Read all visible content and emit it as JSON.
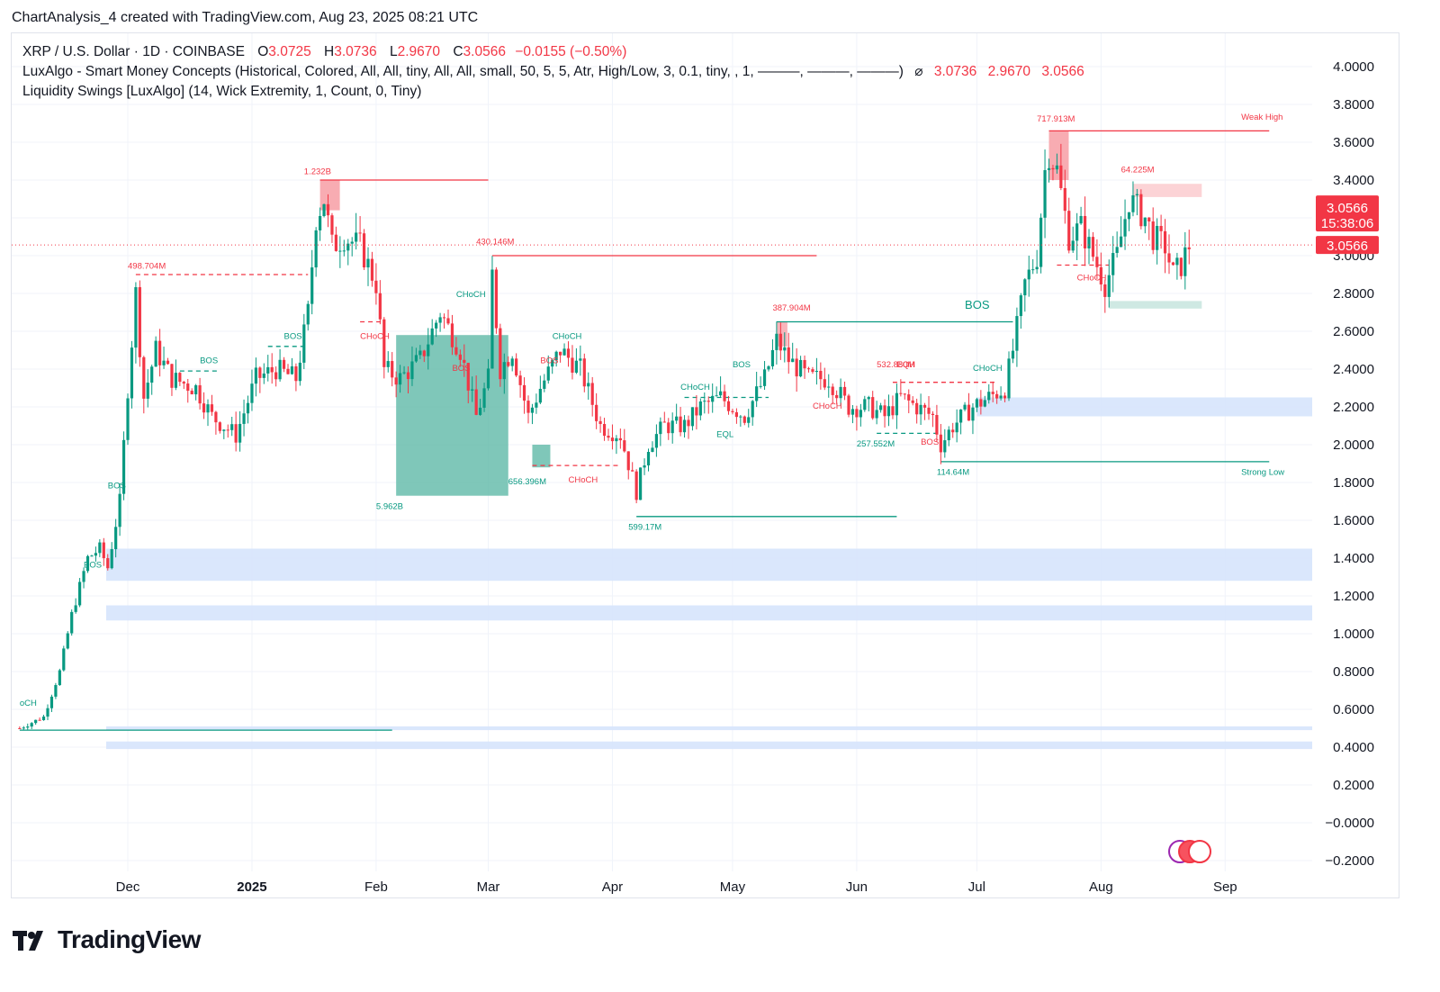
{
  "header": {
    "text": "ChartAnalysis_4 created with TradingView.com, Aug 23, 2025 08:21 UTC"
  },
  "legend": {
    "symbol": "XRP / U.S. Dollar · 1D · COINBASE",
    "o_label": "O",
    "o_value": "3.0725",
    "h_label": "H",
    "h_value": "3.0736",
    "l_label": "L",
    "l_value": "2.9670",
    "c_label": "C",
    "c_value": "3.0566",
    "change": "−0.0155 (−0.50%)",
    "indicator1": "LuxAlgo - Smart Money Concepts (Historical, Colored, All, All, tiny, All, All, small, 50, 5, 5, Atr, High/Low, 3, 0.1, tiny, , 1, ———, ———, ———)",
    "indicator1_values": [
      "3.0736",
      "2.9670",
      "3.0566"
    ],
    "indicator2": "Liquidity Swings [LuxAlgo] (14, Wick Extremity, 1, Count, 0, Tiny)"
  },
  "price_badge": {
    "price": "3.0566",
    "countdown": "15:38:06",
    "price2": "3.0566"
  },
  "brand": {
    "name": "TradingView"
  },
  "colors": {
    "up": "#089981",
    "down": "#f23645",
    "zone_blue": "#d6e4fc",
    "zone_teal": "#5fb9a7",
    "zone_red": "#f7a3aa"
  },
  "chart_data": {
    "type": "candlestick",
    "symbol": "XRP / U.S. Dollar",
    "interval": "1D",
    "y_axis": {
      "ylim": [
        -0.25,
        4.1
      ],
      "ticks": [
        "4.0000",
        "3.8000",
        "3.6000",
        "3.4000",
        "3.2000",
        "3.0000",
        "2.8000",
        "2.6000",
        "2.4000",
        "2.2000",
        "2.0000",
        "1.8000",
        "1.6000",
        "1.4000",
        "1.2000",
        "1.0000",
        "0.8000",
        "0.6000",
        "0.4000",
        "0.2000",
        "−0.0000",
        "−0.2000"
      ]
    },
    "x_axis": {
      "ticks": [
        "Dec",
        "2025",
        "Feb",
        "Mar",
        "Apr",
        "May",
        "Jun",
        "Jul",
        "Aug",
        "Sep"
      ]
    },
    "current_price": 3.0566,
    "price_path": [
      [
        "2024-11-04",
        0.5
      ],
      [
        "2024-11-10",
        0.56
      ],
      [
        "2024-11-14",
        0.8
      ],
      [
        "2024-11-17",
        1.1
      ],
      [
        "2024-11-21",
        1.4
      ],
      [
        "2024-11-24",
        1.45
      ],
      [
        "2024-11-26",
        1.35
      ],
      [
        "2024-11-29",
        1.7
      ],
      [
        "2024-12-01",
        2.3
      ],
      [
        "2024-12-03",
        2.8
      ],
      [
        "2024-12-05",
        2.25
      ],
      [
        "2024-12-08",
        2.5
      ],
      [
        "2024-12-12",
        2.35
      ],
      [
        "2024-12-18",
        2.3
      ],
      [
        "2024-12-22",
        2.15
      ],
      [
        "2024-12-28",
        2.05
      ],
      [
        "2025-01-02",
        2.35
      ],
      [
        "2025-01-07",
        2.4
      ],
      [
        "2025-01-12",
        2.35
      ],
      [
        "2025-01-15",
        2.7
      ],
      [
        "2025-01-17",
        3.2
      ],
      [
        "2025-01-19",
        3.3
      ],
      [
        "2025-01-21",
        3.05
      ],
      [
        "2025-01-24",
        3.1
      ],
      [
        "2025-01-28",
        3.05
      ],
      [
        "2025-02-01",
        2.85
      ],
      [
        "2025-02-03",
        2.4
      ],
      [
        "2025-02-07",
        2.35
      ],
      [
        "2025-02-12",
        2.45
      ],
      [
        "2025-02-17",
        2.7
      ],
      [
        "2025-02-22",
        2.5
      ],
      [
        "2025-02-26",
        2.15
      ],
      [
        "2025-03-01",
        2.35
      ],
      [
        "2025-03-02",
        2.9
      ],
      [
        "2025-03-04",
        2.4
      ],
      [
        "2025-03-07",
        2.5
      ],
      [
        "2025-03-11",
        2.15
      ],
      [
        "2025-03-14",
        2.3
      ],
      [
        "2025-03-19",
        2.5
      ],
      [
        "2025-03-24",
        2.4
      ],
      [
        "2025-03-29",
        2.1
      ],
      [
        "2025-04-03",
        2.05
      ],
      [
        "2025-04-07",
        1.75
      ],
      [
        "2025-04-10",
        2.0
      ],
      [
        "2025-04-14",
        2.1
      ],
      [
        "2025-04-19",
        2.1
      ],
      [
        "2025-04-23",
        2.2
      ],
      [
        "2025-04-28",
        2.25
      ],
      [
        "2025-05-04",
        2.15
      ],
      [
        "2025-05-09",
        2.35
      ],
      [
        "2025-05-12",
        2.55
      ],
      [
        "2025-05-15",
        2.45
      ],
      [
        "2025-05-20",
        2.35
      ],
      [
        "2025-05-25",
        2.35
      ],
      [
        "2025-05-30",
        2.2
      ],
      [
        "2025-06-04",
        2.2
      ],
      [
        "2025-06-08",
        2.15
      ],
      [
        "2025-06-12",
        2.25
      ],
      [
        "2025-06-16",
        2.2
      ],
      [
        "2025-06-20",
        2.15
      ],
      [
        "2025-06-22",
        2.0
      ],
      [
        "2025-06-25",
        2.1
      ],
      [
        "2025-06-30",
        2.2
      ],
      [
        "2025-07-04",
        2.25
      ],
      [
        "2025-07-08",
        2.3
      ],
      [
        "2025-07-10",
        2.5
      ],
      [
        "2025-07-13",
        2.85
      ],
      [
        "2025-07-16",
        3.0
      ],
      [
        "2025-07-18",
        3.45
      ],
      [
        "2025-07-19",
        3.55
      ],
      [
        "2025-07-21",
        3.45
      ],
      [
        "2025-07-24",
        3.1
      ],
      [
        "2025-07-27",
        3.15
      ],
      [
        "2025-07-30",
        3.0
      ],
      [
        "2025-08-02",
        2.85
      ],
      [
        "2025-08-05",
        3.0
      ],
      [
        "2025-08-08",
        3.3
      ],
      [
        "2025-08-12",
        3.2
      ],
      [
        "2025-08-14",
        3.1
      ],
      [
        "2025-08-17",
        3.05
      ],
      [
        "2025-08-19",
        2.9
      ],
      [
        "2025-08-21",
        2.95
      ],
      [
        "2025-08-23",
        3.0566
      ]
    ],
    "annotations": [
      {
        "label": "1.232B",
        "price": 3.39,
        "color": "red"
      },
      {
        "label": "498.704M",
        "price": 2.9,
        "color": "red"
      },
      {
        "label": "430.146M",
        "price": 3.0,
        "color": "red"
      },
      {
        "label": "387.904M",
        "price": 2.65,
        "color": "red"
      },
      {
        "label": "532.880M",
        "price": 2.33,
        "color": "red"
      },
      {
        "label": "717.913M",
        "price": 3.66,
        "color": "red"
      },
      {
        "label": "64.225M",
        "price": 3.38,
        "color": "red"
      },
      {
        "label": "5.962B",
        "price": 1.73,
        "color": "teal"
      },
      {
        "label": "656.396M",
        "price": 1.88,
        "color": "teal"
      },
      {
        "label": "599.17M",
        "price": 1.62,
        "color": "teal"
      },
      {
        "label": "257.552M",
        "price": 2.06,
        "color": "teal"
      },
      {
        "label": "114.64M",
        "price": 1.91,
        "color": "teal"
      },
      {
        "label": "Weak High",
        "price": 3.66,
        "color": "red"
      },
      {
        "label": "Strong Low",
        "price": 1.91,
        "color": "teal"
      },
      {
        "label": "BOS",
        "color": "teal"
      },
      {
        "label": "CHoCH",
        "color": "teal"
      },
      {
        "label": "CHoCH",
        "color": "red"
      },
      {
        "label": "BOS",
        "color": "red"
      },
      {
        "label": "EQL",
        "color": "teal"
      },
      {
        "label": "EQH",
        "color": "red"
      }
    ]
  }
}
